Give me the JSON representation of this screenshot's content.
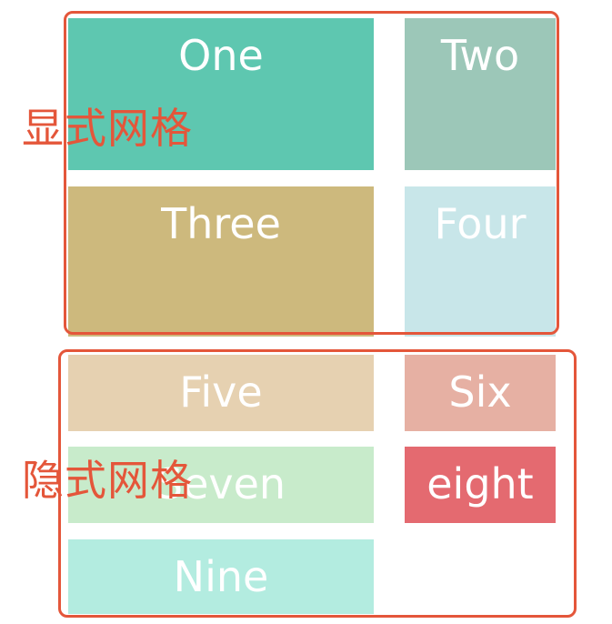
{
  "explicit_grid": {
    "label": "显式网格",
    "frame_color": "#e4563a",
    "cells": [
      {
        "text": "One",
        "color": "#5ec7b0"
      },
      {
        "text": "Two",
        "color": "#9cc7b8"
      },
      {
        "text": "Three",
        "color": "#cdb97d"
      },
      {
        "text": "Four",
        "color": "#c8e6e9"
      }
    ]
  },
  "implicit_grid": {
    "label": "隐式网格",
    "frame_color": "#e4563a",
    "cells": [
      {
        "text": "Five",
        "color": "#e6d1b1"
      },
      {
        "text": "Six",
        "color": "#e6b0a3"
      },
      {
        "text": "Seven",
        "color": "#c8ebcb"
      },
      {
        "text": "eight",
        "color": "#e46a70"
      },
      {
        "text": "Nine",
        "color": "#b3ece0"
      }
    ]
  }
}
